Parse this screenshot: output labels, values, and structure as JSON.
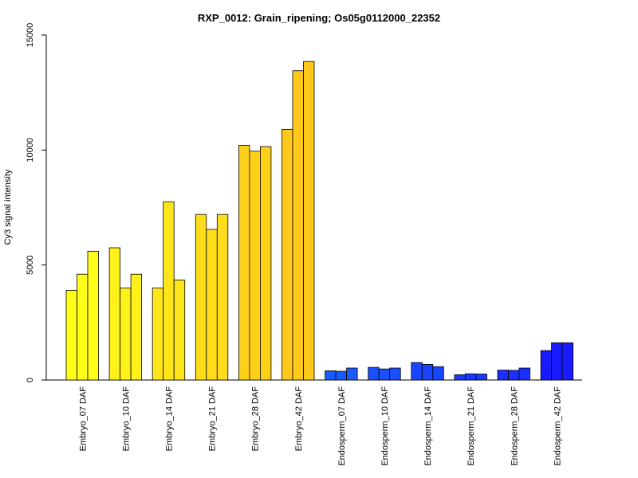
{
  "chart_data": {
    "type": "bar",
    "title": "RXP_0012: Grain_ripening; Os05g0112000_22352",
    "xlabel": "",
    "ylabel": "Cy3 signal intensity",
    "ylim": [
      0,
      15000
    ],
    "yticks": [
      0,
      5000,
      10000,
      15000
    ],
    "grid": false,
    "legend": "none",
    "categories": [
      "Embryo_07 DAF",
      "Embryo_10 DAF",
      "Embryo_14 DAF",
      "Embryo_21 DAF",
      "Embryo_28 DAF",
      "Embryo_42 DAF",
      "Endosperm_07 DAF",
      "Endosperm_10 DAF",
      "Endosperm_14 DAF",
      "Endosperm_21 DAF",
      "Endosperm_28 DAF",
      "Endosperm_42 DAF"
    ],
    "replicates": [
      [
        3900,
        4600,
        5600
      ],
      [
        5750,
        4000,
        4600
      ],
      [
        4000,
        7750,
        4350
      ],
      [
        7200,
        6550,
        7200
      ],
      [
        10200,
        9950,
        10150
      ],
      [
        10900,
        13450,
        13850
      ],
      [
        400,
        380,
        520
      ],
      [
        550,
        480,
        520
      ],
      [
        760,
        680,
        580
      ],
      [
        230,
        270,
        260
      ],
      [
        430,
        420,
        520
      ],
      [
        1280,
        1620,
        1620
      ]
    ],
    "colors": [
      "#ffff1a",
      "#fff11a",
      "#ffe61a",
      "#ffdd1a",
      "#ffd01a",
      "#ffc81a",
      "#1a5aff",
      "#1a50ff",
      "#1a45ff",
      "#1a3aff",
      "#1a2eff",
      "#1a1aff"
    ]
  }
}
